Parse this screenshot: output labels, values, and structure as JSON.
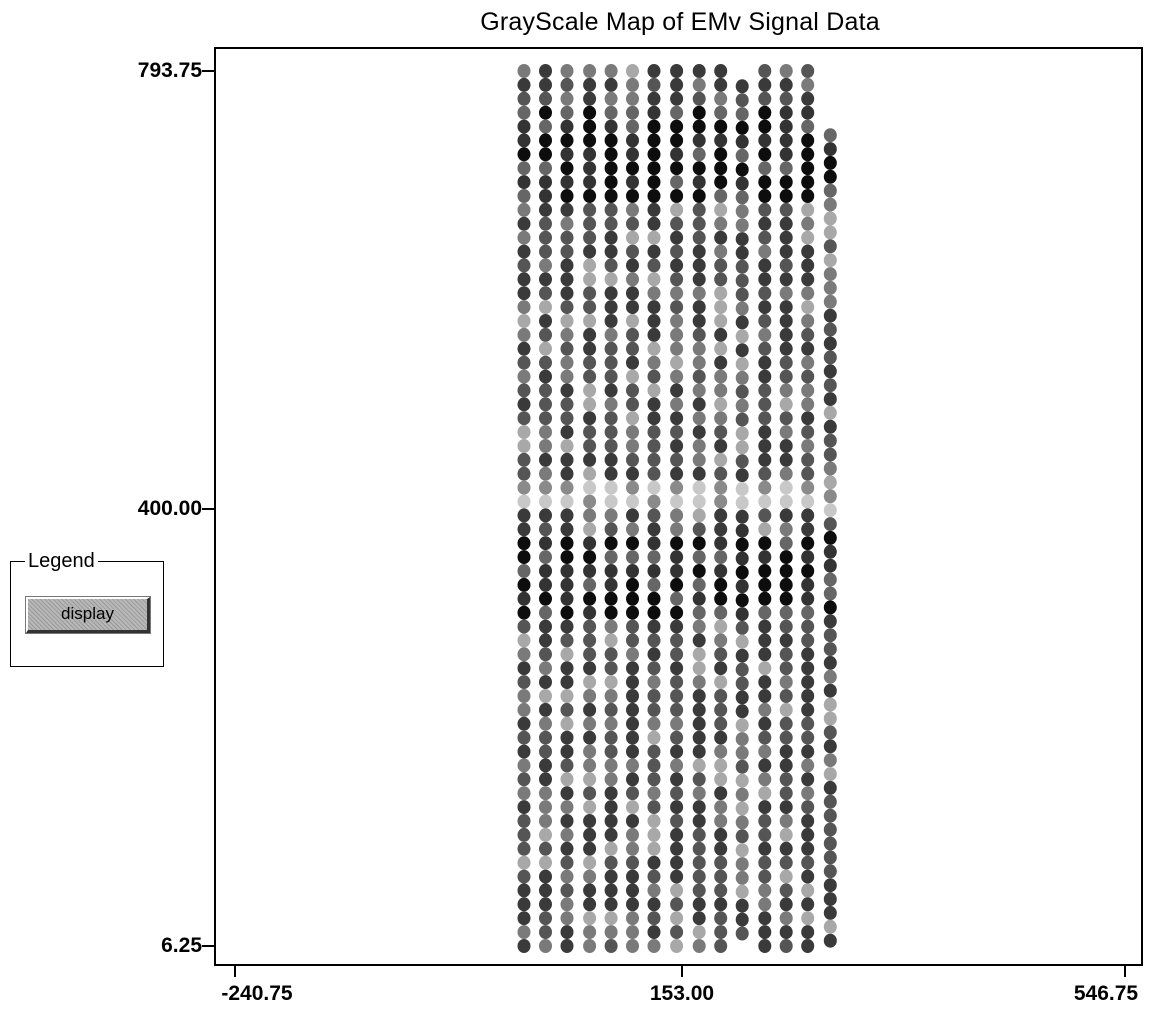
{
  "window": {
    "title": "GrayScale Map of EMv Signal Data"
  },
  "legend": {
    "title": "Legend",
    "display_label": "display"
  },
  "chart_data": {
    "type": "scatter",
    "title": "GrayScale Map of EMv Signal Data",
    "xlabel": "",
    "ylabel": "",
    "xlim": [
      -240.75,
      546.75
    ],
    "ylim": [
      6.25,
      793.75
    ],
    "x_ticks": [
      "-240.75",
      "153.00",
      "546.75"
    ],
    "y_ticks": [
      "793.75",
      "400.00",
      "6.25"
    ],
    "grid": false,
    "encoding": "grayscale",
    "columns": [
      {
        "x": 15,
        "y_top": 793.75
      },
      {
        "x": 34,
        "y_top": 793.75
      },
      {
        "x": 53,
        "y_top": 793.75
      },
      {
        "x": 73,
        "y_top": 793.75
      },
      {
        "x": 92,
        "y_top": 793.75
      },
      {
        "x": 111,
        "y_top": 793.75
      },
      {
        "x": 130,
        "y_top": 793.75
      },
      {
        "x": 150,
        "y_top": 793.75
      },
      {
        "x": 170,
        "y_top": 793.75
      },
      {
        "x": 189,
        "y_top": 793.75
      },
      {
        "x": 208,
        "y_top": 780
      },
      {
        "x": 228,
        "y_top": 793.75
      },
      {
        "x": 247,
        "y_top": 793.75
      },
      {
        "x": 266,
        "y_top": 793.75
      },
      {
        "x": 286,
        "y_top": 736
      }
    ],
    "y_bottom": 6.25,
    "y_step": 12.5,
    "bands": [
      {
        "from": 680,
        "to": 760,
        "level": "dark"
      },
      {
        "from": 395,
        "to": 420,
        "level": "light"
      },
      {
        "from": 300,
        "to": 380,
        "level": "dark"
      },
      {
        "from": 6.25,
        "to": 300,
        "level": "medium"
      }
    ]
  }
}
